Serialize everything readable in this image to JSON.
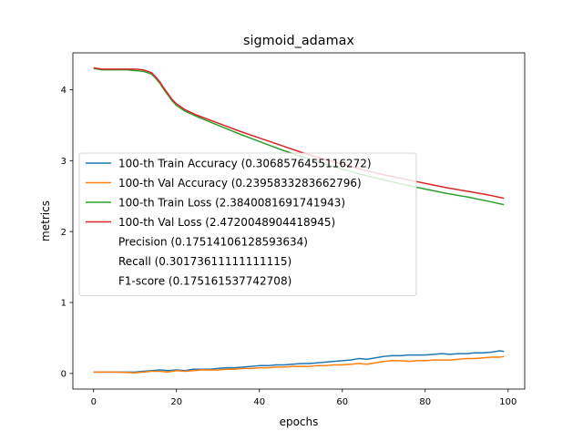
{
  "chart_data": {
    "type": "line",
    "title": "sigmoid_adamax",
    "xlabel": "epochs",
    "ylabel": "metrics",
    "xlim": [
      -5,
      104
    ],
    "ylim": [
      -0.22,
      4.52
    ],
    "xticks": [
      0,
      20,
      40,
      60,
      80,
      100
    ],
    "yticks": [
      0,
      1,
      2,
      3,
      4
    ],
    "grid": false,
    "legend_position": "center-left",
    "series": [
      {
        "name": "100-th Train Accuracy (0.3068576455116272)",
        "color": "#1f77b4",
        "x": [
          0,
          5,
          10,
          12,
          14,
          16,
          18,
          20,
          22,
          24,
          26,
          28,
          30,
          32,
          34,
          36,
          38,
          40,
          42,
          44,
          46,
          48,
          50,
          52,
          54,
          56,
          58,
          60,
          62,
          64,
          66,
          68,
          70,
          72,
          74,
          76,
          78,
          80,
          82,
          84,
          86,
          88,
          90,
          92,
          94,
          96,
          98,
          99
        ],
        "y": [
          0.02,
          0.02,
          0.02,
          0.03,
          0.04,
          0.05,
          0.04,
          0.05,
          0.04,
          0.06,
          0.06,
          0.06,
          0.07,
          0.08,
          0.08,
          0.09,
          0.1,
          0.11,
          0.11,
          0.12,
          0.12,
          0.13,
          0.14,
          0.14,
          0.15,
          0.16,
          0.17,
          0.18,
          0.19,
          0.21,
          0.2,
          0.22,
          0.24,
          0.25,
          0.25,
          0.26,
          0.26,
          0.26,
          0.27,
          0.28,
          0.27,
          0.28,
          0.28,
          0.29,
          0.29,
          0.3,
          0.32,
          0.31
        ]
      },
      {
        "name": "100-th Val Accuracy (0.2395833283662796)",
        "color": "#ff7f0e",
        "x": [
          0,
          5,
          10,
          12,
          14,
          16,
          18,
          20,
          22,
          24,
          26,
          28,
          30,
          32,
          34,
          36,
          38,
          40,
          42,
          44,
          46,
          48,
          50,
          52,
          54,
          56,
          58,
          60,
          62,
          64,
          66,
          68,
          70,
          72,
          74,
          76,
          78,
          80,
          82,
          84,
          86,
          88,
          90,
          92,
          94,
          96,
          98,
          99
        ],
        "y": [
          0.02,
          0.02,
          0.01,
          0.02,
          0.03,
          0.03,
          0.02,
          0.04,
          0.03,
          0.04,
          0.05,
          0.05,
          0.05,
          0.06,
          0.06,
          0.07,
          0.07,
          0.08,
          0.08,
          0.09,
          0.09,
          0.1,
          0.1,
          0.1,
          0.11,
          0.11,
          0.12,
          0.12,
          0.13,
          0.14,
          0.13,
          0.15,
          0.17,
          0.18,
          0.18,
          0.17,
          0.18,
          0.18,
          0.19,
          0.19,
          0.19,
          0.2,
          0.21,
          0.21,
          0.22,
          0.23,
          0.23,
          0.24
        ]
      },
      {
        "name": "100-th Train Loss (2.3840081691741943)",
        "color": "#2ca02c",
        "x": [
          0,
          2,
          5,
          8,
          10,
          12,
          14,
          15,
          16,
          17,
          18,
          19,
          20,
          22,
          25,
          30,
          35,
          40,
          45,
          50,
          55,
          60,
          65,
          70,
          75,
          80,
          85,
          90,
          95,
          99
        ],
        "y": [
          4.3,
          4.28,
          4.28,
          4.28,
          4.27,
          4.26,
          4.22,
          4.16,
          4.09,
          4.0,
          3.92,
          3.84,
          3.78,
          3.7,
          3.62,
          3.5,
          3.38,
          3.27,
          3.16,
          3.06,
          2.97,
          2.88,
          2.8,
          2.73,
          2.66,
          2.6,
          2.54,
          2.49,
          2.43,
          2.38
        ]
      },
      {
        "name": "100-th Val Loss (2.4720048904418945)",
        "color": "#d62728",
        "x": [
          0,
          2,
          5,
          8,
          10,
          12,
          14,
          15,
          16,
          17,
          18,
          19,
          20,
          22,
          25,
          30,
          35,
          40,
          45,
          50,
          55,
          60,
          65,
          70,
          75,
          80,
          85,
          90,
          95,
          99
        ],
        "y": [
          4.31,
          4.29,
          4.29,
          4.29,
          4.29,
          4.28,
          4.24,
          4.18,
          4.11,
          4.02,
          3.94,
          3.86,
          3.8,
          3.72,
          3.64,
          3.53,
          3.42,
          3.32,
          3.22,
          3.12,
          3.03,
          2.95,
          2.87,
          2.8,
          2.74,
          2.68,
          2.62,
          2.57,
          2.52,
          2.47
        ]
      }
    ],
    "legend_extra": [
      "Precision (0.17514106128593634)",
      "Recall (0.30173611111111115)",
      "F1-score (0.175161537742708)"
    ]
  }
}
